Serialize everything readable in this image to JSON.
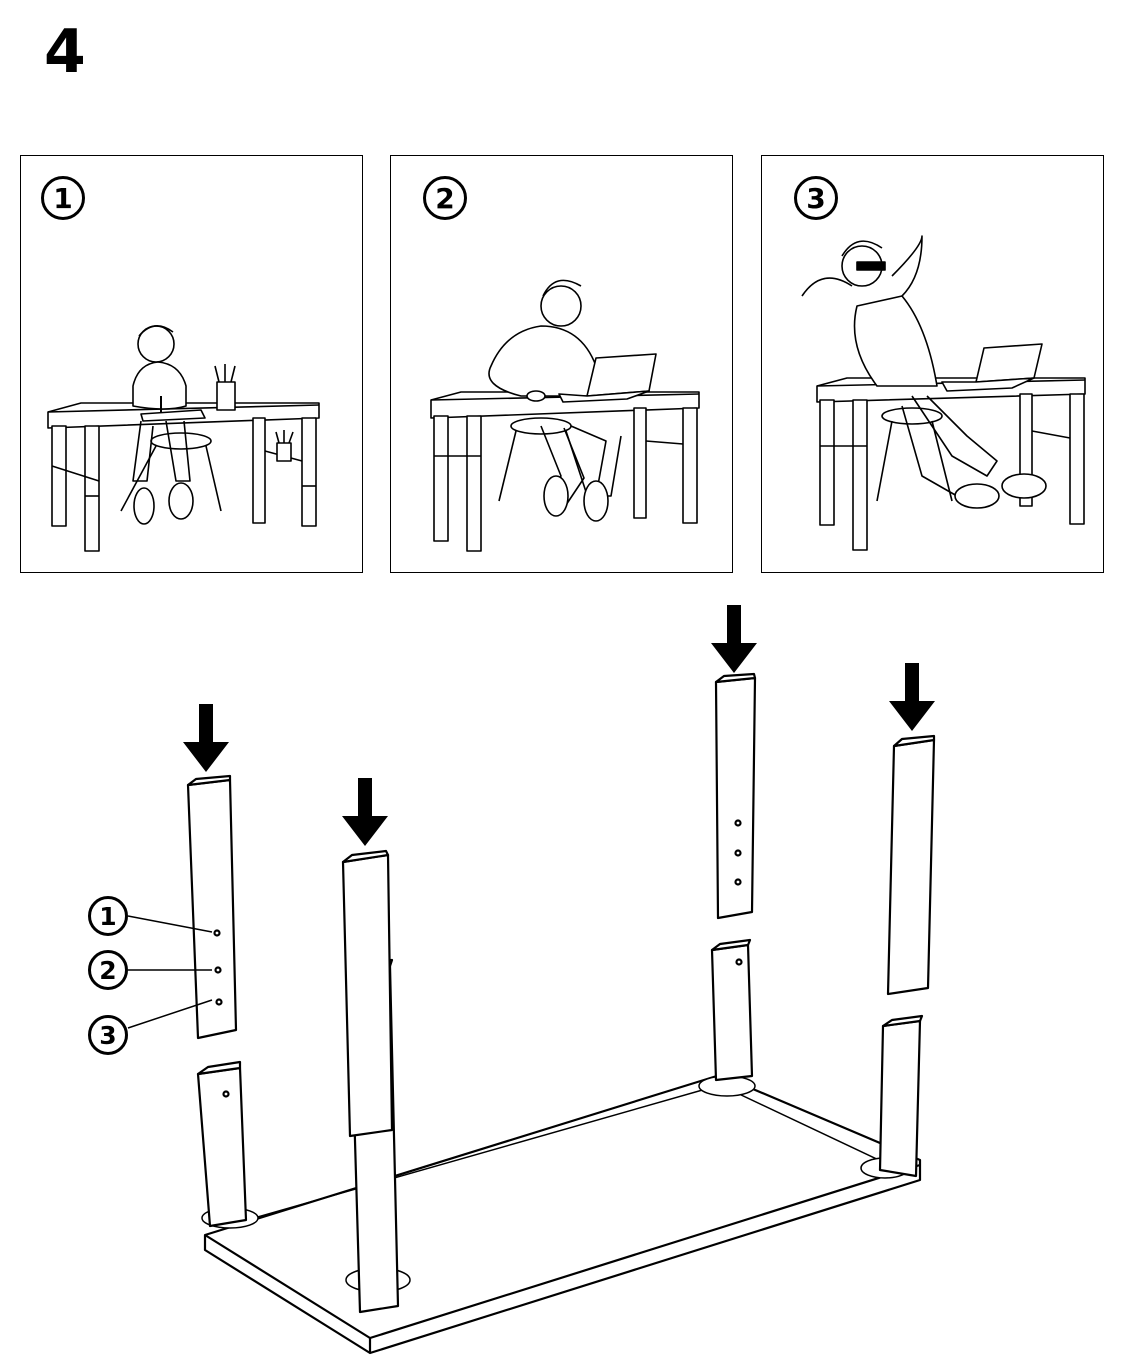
{
  "step": {
    "number": "4"
  },
  "panels": [
    {
      "label": "1",
      "scene": "child-drawing-at-desk"
    },
    {
      "label": "2",
      "scene": "teen-using-laptop-at-desk"
    },
    {
      "label": "3",
      "scene": "adult-relaxing-at-desk"
    }
  ],
  "callouts": [
    {
      "label": "1"
    },
    {
      "label": "2"
    },
    {
      "label": "3"
    }
  ],
  "icons": {
    "arrow": "down-arrow-icon"
  },
  "colors": {
    "ink": "#000000",
    "paper": "#ffffff"
  }
}
